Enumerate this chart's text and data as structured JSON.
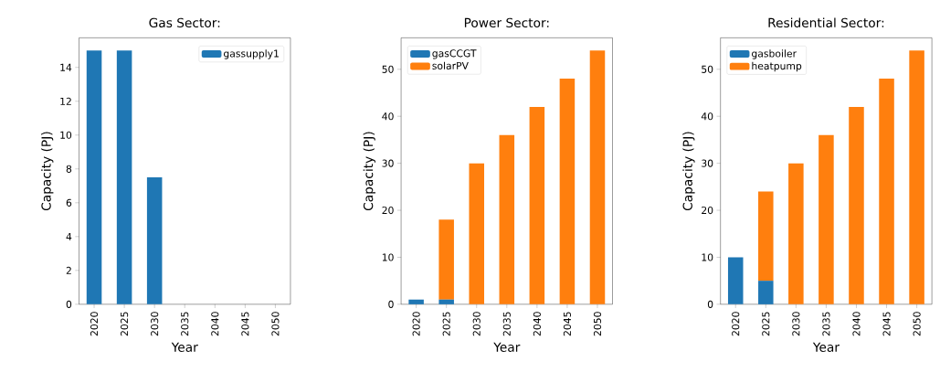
{
  "chart_data": [
    {
      "type": "bar",
      "title": "Gas Sector:",
      "xlabel": "Year",
      "ylabel": "Capacity (PJ)",
      "categories": [
        "2020",
        "2025",
        "2030",
        "2035",
        "2040",
        "2045",
        "2050"
      ],
      "stacked": true,
      "legend": "top right",
      "ylim": [
        0,
        15.75
      ],
      "yticks": [
        0,
        2,
        4,
        6,
        8,
        10,
        12,
        14
      ],
      "series": [
        {
          "name": "gassupply1",
          "color": "#1f77b4",
          "values": [
            15,
            15,
            7.5,
            0,
            0,
            0,
            0
          ]
        }
      ]
    },
    {
      "type": "bar",
      "title": "Power Sector:",
      "xlabel": "Year",
      "ylabel": "Capacity (PJ)",
      "categories": [
        "2020",
        "2025",
        "2030",
        "2035",
        "2040",
        "2045",
        "2050"
      ],
      "stacked": true,
      "legend": "top left",
      "ylim": [
        0,
        56.7
      ],
      "yticks": [
        0,
        10,
        20,
        30,
        40,
        50
      ],
      "series": [
        {
          "name": "gasCCGT",
          "color": "#1f77b4",
          "values": [
            1,
            1,
            0,
            0,
            0,
            0,
            0
          ]
        },
        {
          "name": "solarPV",
          "color": "#ff7f0e",
          "values": [
            0,
            17,
            30,
            36,
            42,
            48,
            54
          ]
        }
      ]
    },
    {
      "type": "bar",
      "title": "Residential Sector:",
      "xlabel": "Year",
      "ylabel": "Capacity (PJ)",
      "categories": [
        "2020",
        "2025",
        "2030",
        "2035",
        "2040",
        "2045",
        "2050"
      ],
      "stacked": true,
      "legend": "top left",
      "ylim": [
        0,
        56.7
      ],
      "yticks": [
        0,
        10,
        20,
        30,
        40,
        50
      ],
      "series": [
        {
          "name": "gasboiler",
          "color": "#1f77b4",
          "values": [
            10,
            5,
            0,
            0,
            0,
            0,
            0
          ]
        },
        {
          "name": "heatpump",
          "color": "#ff7f0e",
          "values": [
            0,
            19,
            30,
            36,
            42,
            48,
            54
          ]
        }
      ]
    }
  ]
}
